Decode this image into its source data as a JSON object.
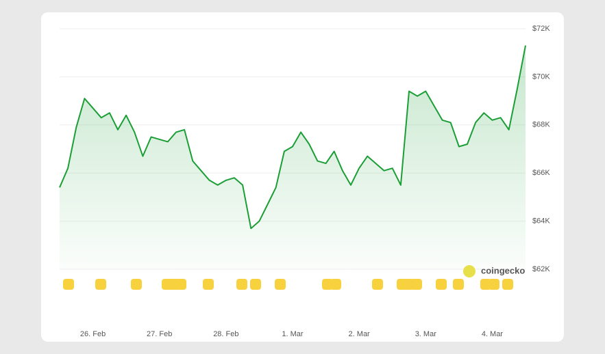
{
  "chart_data": {
    "type": "line",
    "categories": [
      null,
      null,
      null,
      null,
      "26. Feb",
      null,
      null,
      null,
      null,
      null,
      null,
      null,
      "27. Feb",
      null,
      null,
      null,
      null,
      null,
      null,
      null,
      "28. Feb",
      null,
      null,
      null,
      null,
      null,
      null,
      null,
      "1. Mar",
      null,
      null,
      null,
      null,
      null,
      null,
      null,
      "2. Mar",
      null,
      null,
      null,
      null,
      null,
      null,
      null,
      "3. Mar",
      null,
      null,
      null,
      null,
      null,
      null,
      null,
      "4. Mar",
      null,
      null,
      null,
      null
    ],
    "series": [
      {
        "color": "#1a9e35",
        "values": [
          65400,
          66200,
          67900,
          69100,
          68700,
          68300,
          68500,
          67800,
          68400,
          67700,
          66700,
          67500,
          67400,
          67300,
          67700,
          67800,
          66500,
          66100,
          65700,
          65500,
          65700,
          65800,
          65500,
          63700,
          64000,
          64700,
          65400,
          66900,
          67100,
          67700,
          67200,
          66500,
          66400,
          66900,
          66100,
          65500,
          66200,
          66700,
          66400,
          66100,
          66200,
          65500,
          69400,
          69200,
          69400,
          68800,
          68200,
          68100,
          67100,
          67200,
          68100,
          68500,
          68200,
          68300,
          67800,
          69500,
          71300
        ]
      }
    ],
    "ylim": [
      62000,
      72000
    ],
    "yticks": [
      {
        "value": 62000,
        "label": "$62K"
      },
      {
        "value": 64000,
        "label": "$64K"
      },
      {
        "value": 66000,
        "label": "$66K"
      },
      {
        "value": 68000,
        "label": "$68K"
      },
      {
        "value": 70000,
        "label": "$70K"
      },
      {
        "value": 72000,
        "label": "$72K"
      }
    ],
    "grid": true,
    "watermark": "coingecko"
  }
}
